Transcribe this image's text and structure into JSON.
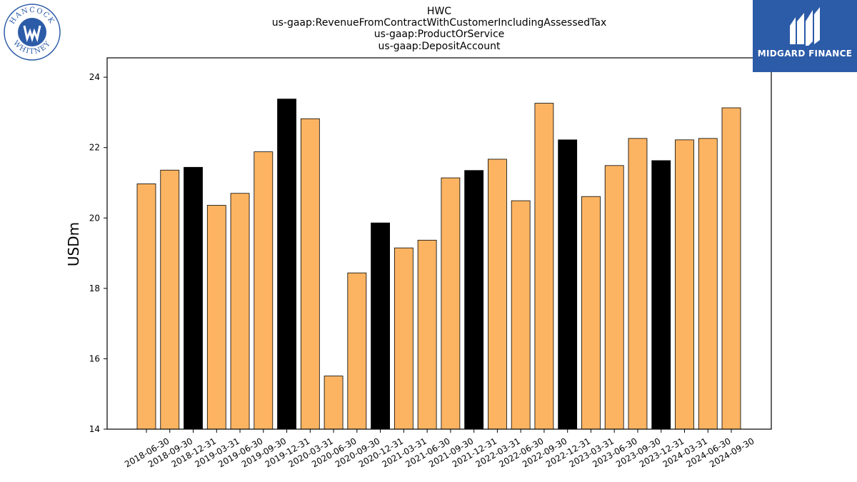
{
  "title_lines": [
    "HWC",
    "us-gaap:RevenueFromContractWithCustomerIncludingAssessedTax",
    "us-gaap:ProductOrService",
    "us-gaap:DepositAccount"
  ],
  "logos": {
    "left_text_top": "HANCOCK",
    "left_text_bottom": "WHITNEY",
    "right_text": "MIDGARD FINANCE"
  },
  "colors": {
    "regular": "#fdb462",
    "year_end": "#000000",
    "edge": "#000000"
  },
  "chart_data": {
    "type": "bar",
    "title": "HWC\nus-gaap:RevenueFromContractWithCustomerIncludingAssessedTax\nus-gaap:ProductOrService\nus-gaap:DepositAccount",
    "xlabel": "",
    "ylabel": "USDm",
    "ylim": [
      14,
      24.55
    ],
    "yticks": [
      14,
      16,
      18,
      20,
      22,
      24
    ],
    "grid": false,
    "categories": [
      "2018-06-30",
      "2018-09-30",
      "2018-12-31",
      "2019-03-31",
      "2019-06-30",
      "2019-09-30",
      "2019-12-31",
      "2020-03-31",
      "2020-06-30",
      "2020-09-30",
      "2020-12-31",
      "2021-03-31",
      "2021-06-30",
      "2021-09-30",
      "2021-12-31",
      "2022-03-31",
      "2022-06-30",
      "2022-09-30",
      "2022-12-31",
      "2023-03-31",
      "2023-06-30",
      "2023-09-30",
      "2023-12-31",
      "2024-03-31",
      "2024-06-30",
      "2024-09-30"
    ],
    "values": [
      20.97,
      21.36,
      21.44,
      20.36,
      20.7,
      21.88,
      23.38,
      22.82,
      15.51,
      18.44,
      19.86,
      19.15,
      19.37,
      21.14,
      21.35,
      21.67,
      20.49,
      23.26,
      22.22,
      20.61,
      21.49,
      22.26,
      21.63,
      22.22,
      22.26,
      23.13
    ],
    "highlight": [
      false,
      false,
      true,
      false,
      false,
      false,
      true,
      false,
      false,
      false,
      true,
      false,
      false,
      false,
      true,
      false,
      false,
      false,
      true,
      false,
      false,
      false,
      true,
      false,
      false,
      false
    ]
  }
}
